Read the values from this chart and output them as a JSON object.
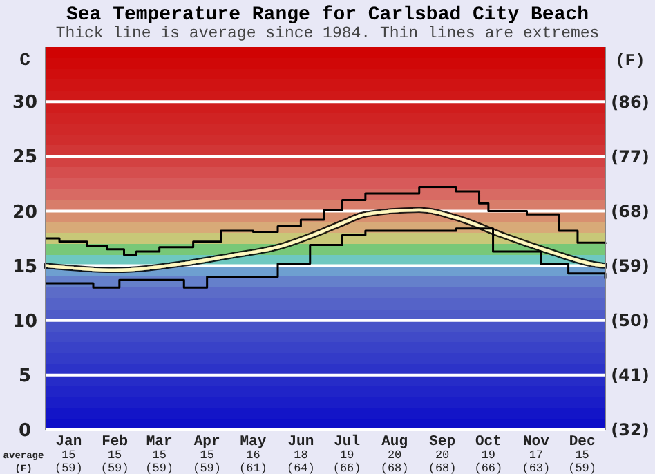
{
  "chart_data": {
    "type": "line",
    "title": "Sea Temperature Range for Carlsbad City Beach",
    "subtitle": "Thick line is average since 1984. Thin lines are extremes",
    "ylabel": "C",
    "y2label": "(F)",
    "xlim": [
      "--01-01",
      "--12-31"
    ],
    "xticks": [
      {
        "value": "--01-16",
        "label": "Jan\n15\n(59)"
      },
      {
        "value": "--02-15",
        "label": "Feb\n15\n(59)"
      },
      {
        "value": "--03-16",
        "label": "Mar\n15\n(59)"
      },
      {
        "value": "--04-16",
        "label": "Apr\n15\n(59)"
      },
      {
        "value": "--05-16",
        "label": "May\n16\n(61)"
      },
      {
        "value": "--06-16",
        "label": "Jun\n18\n(64)"
      },
      {
        "value": "--07-16",
        "label": "Jul\n19\n(66)"
      },
      {
        "value": "--08-16",
        "label": "Aug\n20\n(68)"
      },
      {
        "value": "--09-16",
        "label": "Sep\n20\n(68)"
      },
      {
        "value": "--10-16",
        "label": "Oct\n19\n(66)"
      },
      {
        "value": "--11-16",
        "label": "Nov\n17\n(63)"
      },
      {
        "value": "--12-16",
        "label": "Dec\n15\n(59)"
      }
    ],
    "ylim": [
      0,
      35
    ],
    "yticks": [
      0,
      5,
      10,
      15,
      20,
      25,
      30
    ],
    "y2lim": [
      32,
      95
    ],
    "y2ticks": [
      {
        "value": 32,
        "label": "(32)"
      },
      {
        "value": 41,
        "label": "(41)"
      },
      {
        "value": 50,
        "label": "(50)"
      },
      {
        "value": 59,
        "label": "(59)"
      },
      {
        "value": 68,
        "label": "(68)"
      },
      {
        "value": 77,
        "label": "(77)"
      },
      {
        "value": 86,
        "label": "(86)"
      }
    ],
    "grid": true,
    "annotations": [
      "average\n(F)"
    ],
    "series": [
      {
        "type": "step",
        "color": "#000000",
        "x": [
          "--01-01",
          "--01-10",
          "--01-28",
          "--02-10",
          "--02-21",
          "--03-01",
          "--03-16",
          "--04-07",
          "--04-25",
          "--05-16",
          "--06-01",
          "--06-16",
          "--07-01",
          "--07-13",
          "--07-28",
          "--09-01",
          "--09-25",
          "--10-10",
          "--10-16",
          "--11-10",
          "--12-01",
          "--12-13",
          "--12-31"
        ],
        "values": [
          17.5,
          17.2,
          16.8,
          16.5,
          16.0,
          16.3,
          16.7,
          17.2,
          18.2,
          18.1,
          18.6,
          19.2,
          20.1,
          21.0,
          21.6,
          22.2,
          21.8,
          20.7,
          20.0,
          19.7,
          18.2,
          17.1,
          17.0
        ]
      },
      {
        "color": "#fff8c0",
        "x": [
          "--01-01",
          "--02-15",
          "--04-01",
          "--05-01",
          "--06-01",
          "--07-01",
          "--07-13",
          "--07-28",
          "--09-01",
          "--09-25",
          "--10-25",
          "--11-25",
          "--12-25",
          "--12-31"
        ],
        "values": [
          15.0,
          14.6,
          15.2,
          15.9,
          16.7,
          18.2,
          18.9,
          19.7,
          20.1,
          19.4,
          17.8,
          16.3,
          15.1,
          15.0
        ]
      },
      {
        "type": "step",
        "color": "#000000",
        "x": [
          "--01-01",
          "--02-01",
          "--02-18",
          "--04-01",
          "--04-16",
          "--06-01",
          "--06-22",
          "--07-13",
          "--07-28",
          "--09-25",
          "--10-19",
          "--11-10",
          "--11-19",
          "--12-07",
          "--12-31"
        ],
        "values": [
          13.4,
          13.0,
          13.7,
          13.0,
          14.0,
          15.2,
          16.9,
          17.8,
          18.2,
          18.4,
          16.3,
          16.3,
          15.2,
          14.3,
          13.8
        ]
      }
    ]
  }
}
